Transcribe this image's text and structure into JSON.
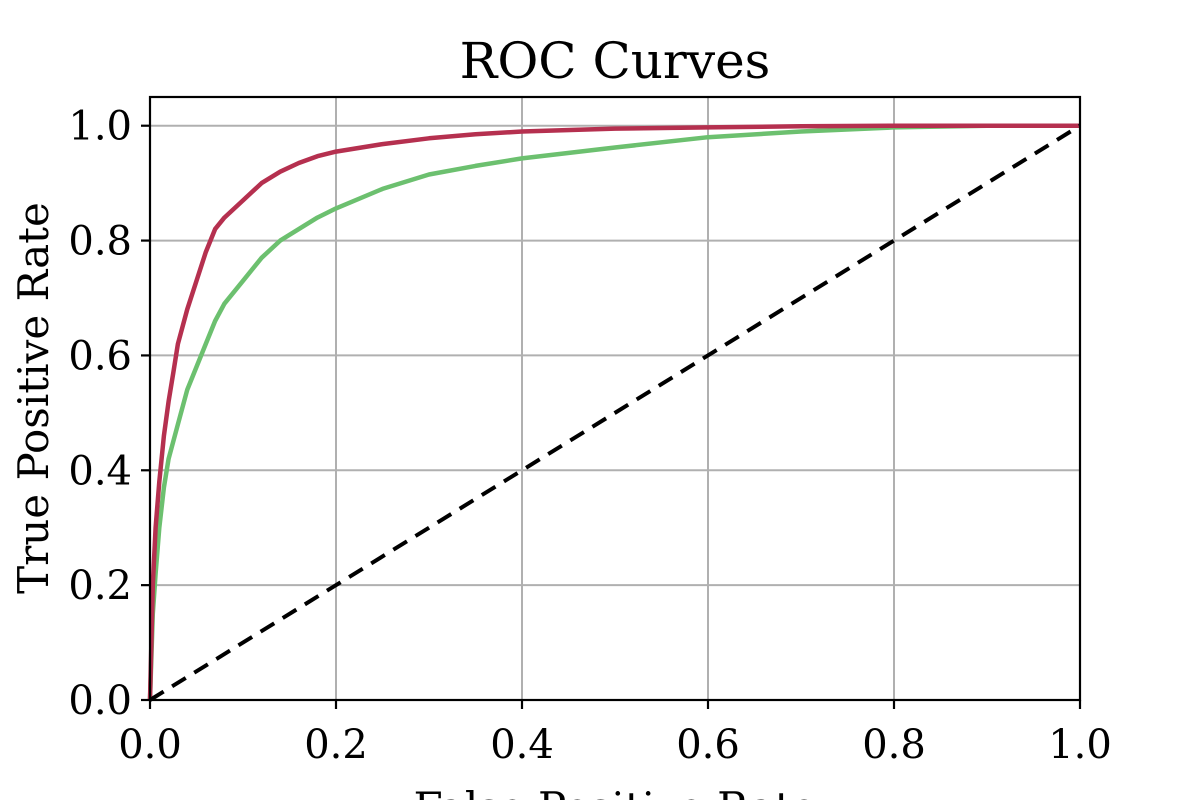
{
  "chart_data": {
    "type": "line",
    "title": "ROC Curves",
    "xlabel": "False Positive Rate",
    "ylabel": "True Positive Rate",
    "xlim": [
      0.0,
      1.0
    ],
    "ylim": [
      0.0,
      1.05
    ],
    "xticks": [
      "0.0",
      "0.2",
      "0.4",
      "0.6",
      "0.8",
      "1.0"
    ],
    "yticks": [
      "0.0",
      "0.2",
      "0.4",
      "0.6",
      "0.8",
      "1.0"
    ],
    "grid": true,
    "series": [
      {
        "color": "#b5304f",
        "x": [
          0.0,
          0.003,
          0.006,
          0.01,
          0.015,
          0.02,
          0.025,
          0.03,
          0.04,
          0.05,
          0.06,
          0.07,
          0.08,
          0.1,
          0.12,
          0.14,
          0.16,
          0.18,
          0.2,
          0.25,
          0.3,
          0.35,
          0.4,
          0.5,
          0.6,
          0.7,
          0.8,
          0.9,
          1.0
        ],
        "y": [
          0.0,
          0.2,
          0.3,
          0.38,
          0.46,
          0.52,
          0.57,
          0.62,
          0.68,
          0.73,
          0.78,
          0.82,
          0.84,
          0.87,
          0.9,
          0.92,
          0.935,
          0.947,
          0.955,
          0.968,
          0.978,
          0.985,
          0.99,
          0.995,
          0.997,
          0.999,
          1.0,
          1.0,
          1.0
        ]
      },
      {
        "color": "#6cc06f",
        "x": [
          0.0,
          0.003,
          0.006,
          0.01,
          0.015,
          0.02,
          0.03,
          0.04,
          0.05,
          0.06,
          0.07,
          0.08,
          0.1,
          0.12,
          0.14,
          0.16,
          0.18,
          0.2,
          0.25,
          0.3,
          0.35,
          0.4,
          0.5,
          0.6,
          0.7,
          0.8,
          0.9,
          1.0
        ],
        "y": [
          0.0,
          0.15,
          0.22,
          0.3,
          0.37,
          0.42,
          0.48,
          0.54,
          0.58,
          0.62,
          0.66,
          0.69,
          0.73,
          0.77,
          0.8,
          0.82,
          0.84,
          0.856,
          0.89,
          0.915,
          0.93,
          0.943,
          0.962,
          0.98,
          0.99,
          0.997,
          1.0,
          1.0
        ]
      },
      {
        "color": "#000000",
        "dashed": true,
        "x": [
          0.0,
          1.0
        ],
        "y": [
          0.0,
          1.0
        ]
      }
    ]
  }
}
